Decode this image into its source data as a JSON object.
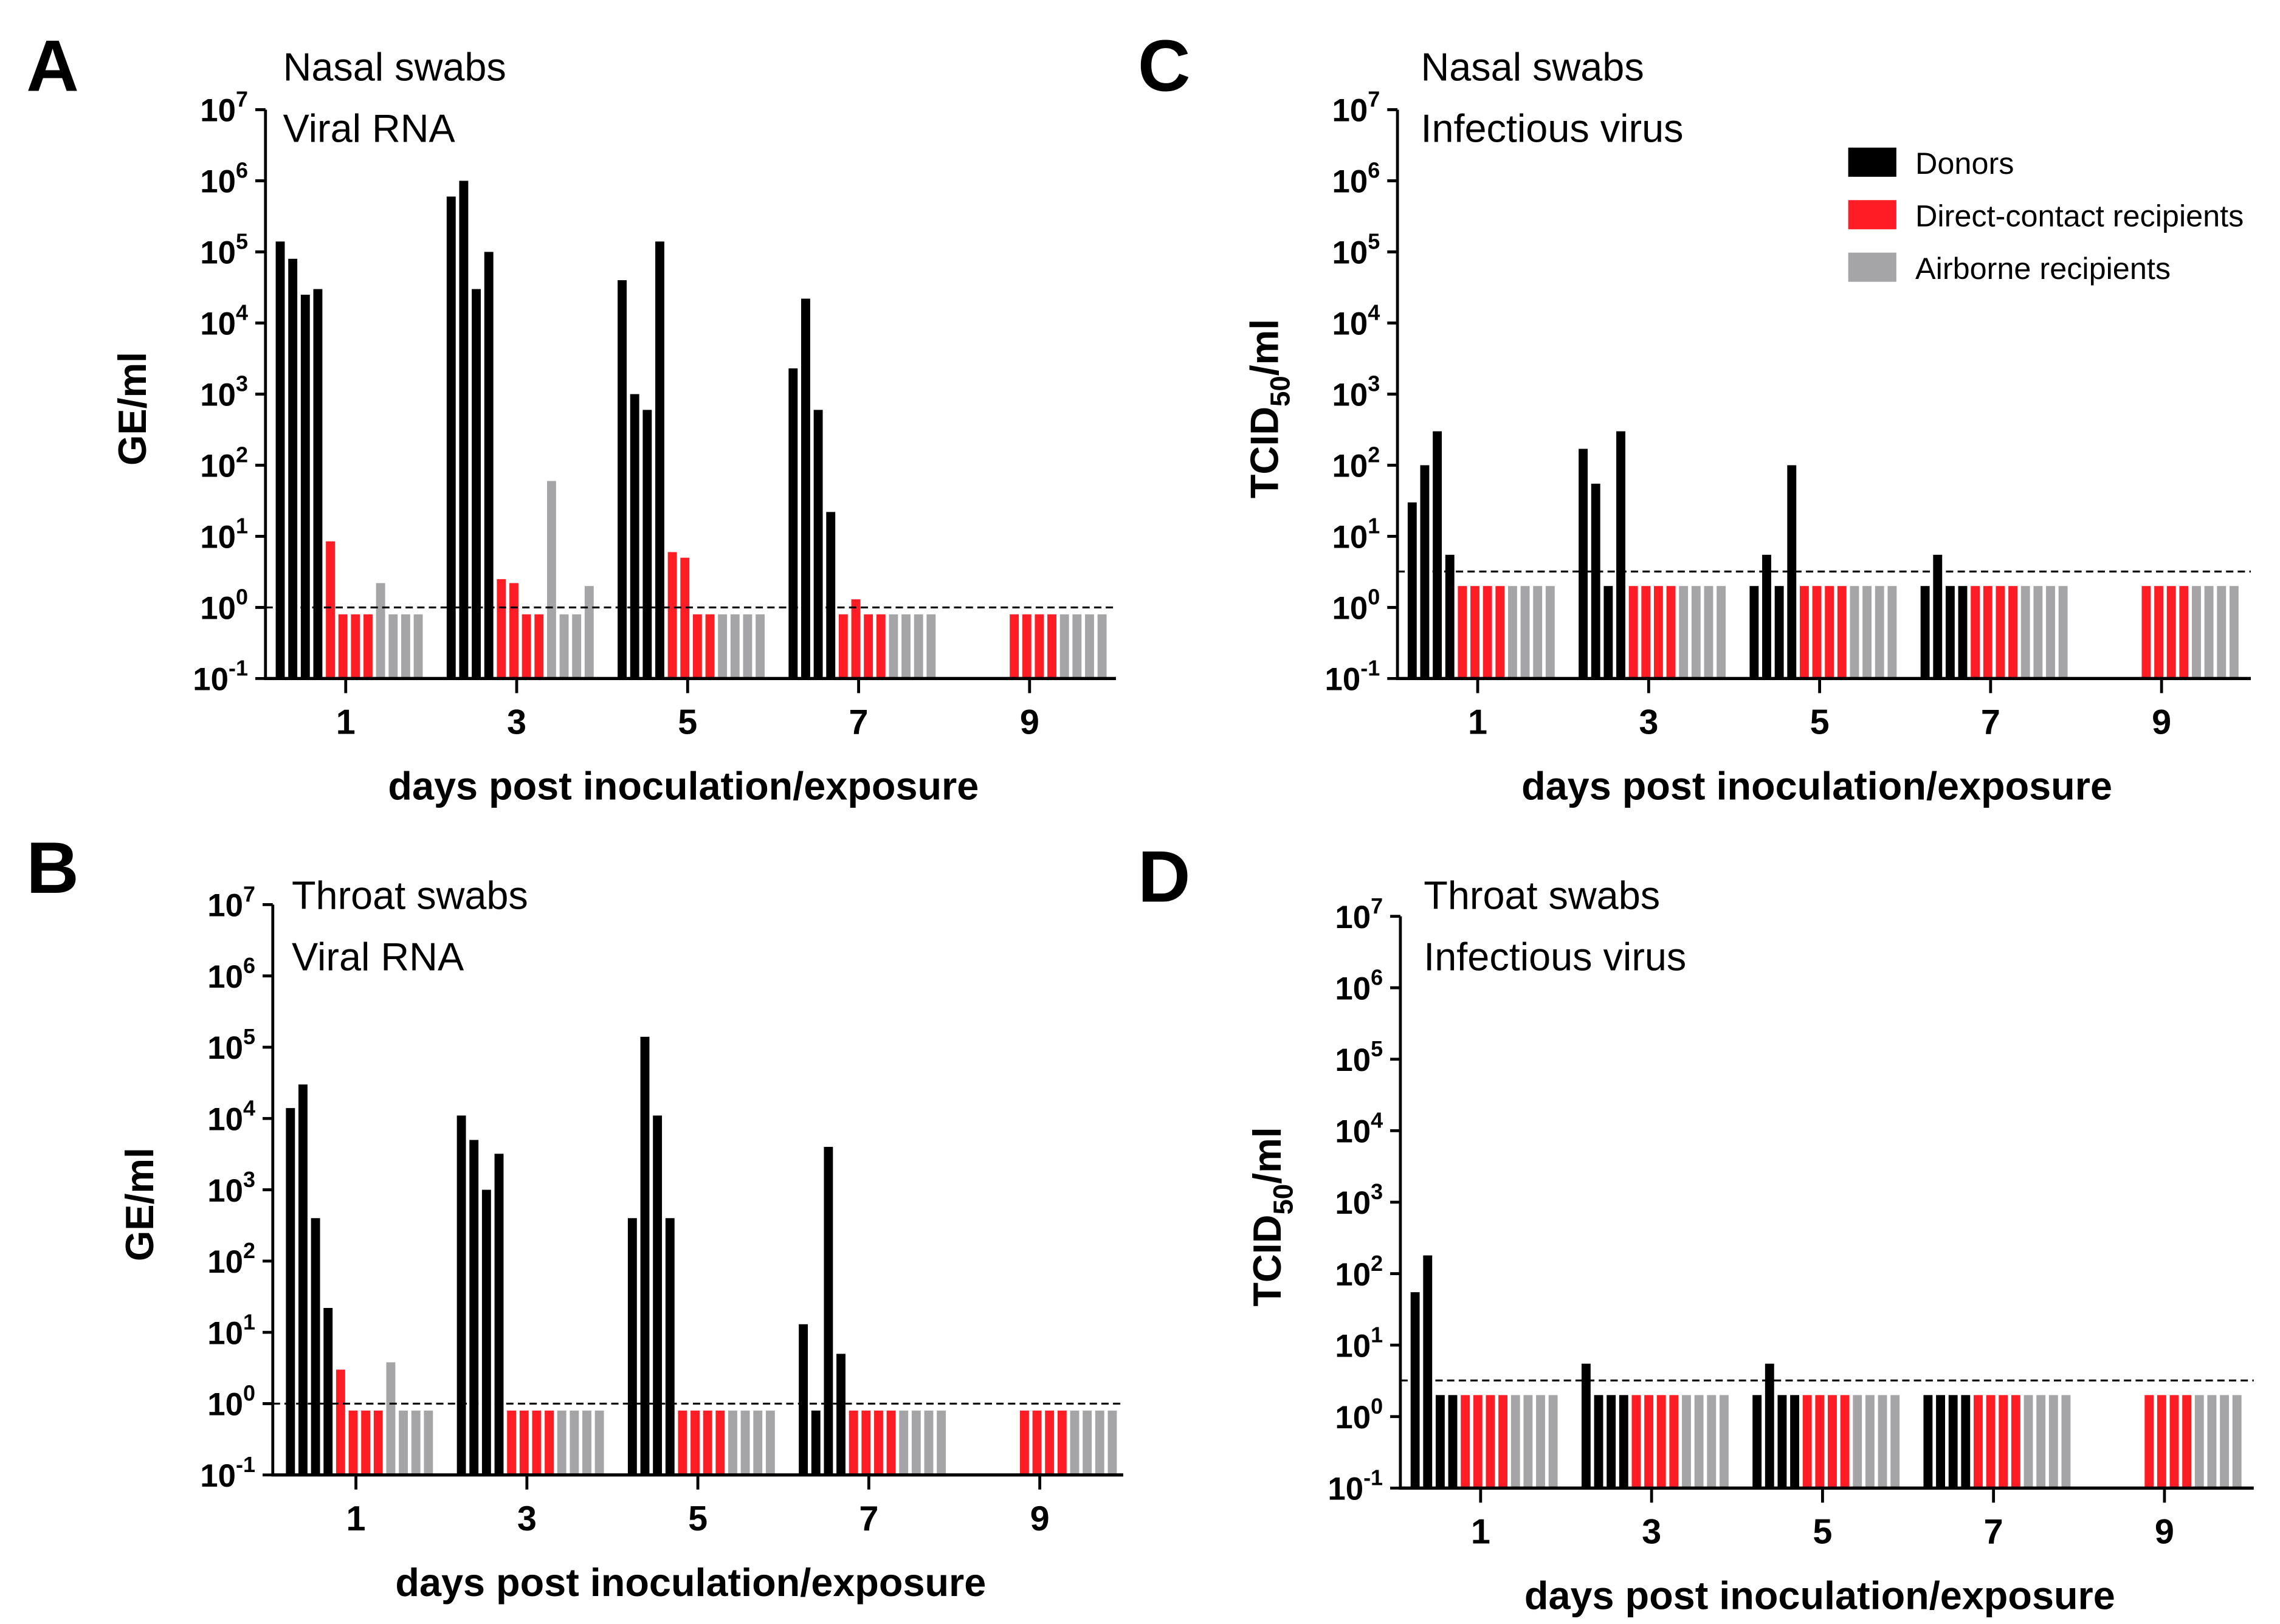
{
  "colors": {
    "donors": "#000000",
    "direct": "#ff1d25",
    "airborne": "#a5a5a7"
  },
  "legend": [
    "Donors",
    "Direct-contact recipients",
    "Airborne recipients"
  ],
  "chart_data": [
    {
      "panel": "A",
      "type": "bar",
      "title": [
        "Nasal swabs",
        "Viral RNA"
      ],
      "ylabel": "GE/ml",
      "ylabel_sub": "",
      "ylabel_suffix": "",
      "xlabel": "days post inoculation/exposure",
      "yscale": "log",
      "ylim": [
        0.1,
        10000000
      ],
      "ytick_exps": [
        "7",
        "6",
        "5",
        "4",
        "3",
        "2",
        "1",
        "0",
        "-1"
      ],
      "categories": [
        "1",
        "3",
        "5",
        "7",
        "9"
      ],
      "detection_limit": 1,
      "series": [
        {
          "name": "Donors",
          "values": [
            [
              140000,
              80000,
              25000,
              30000
            ],
            [
              600000,
              1000000,
              30000,
              100000
            ],
            [
              40000,
              1000,
              600,
              140000
            ],
            [
              2300,
              22000,
              600,
              22
            ],
            null
          ]
        },
        {
          "name": "Direct-contact recipients",
          "values": [
            [
              8.5,
              0.8,
              0.8,
              0.8
            ],
            [
              2.5,
              2.2,
              0.8,
              0.8
            ],
            [
              6,
              5,
              0.8,
              0.8
            ],
            [
              0.8,
              1.3,
              0.8,
              0.8
            ],
            [
              0.8,
              0.8,
              0.8,
              0.8
            ]
          ]
        },
        {
          "name": "Airborne recipients",
          "values": [
            [
              2.2,
              0.8,
              0.8,
              0.8
            ],
            [
              60,
              0.8,
              0.8,
              2
            ],
            [
              0.8,
              0.8,
              0.8,
              0.8
            ],
            [
              0.8,
              0.8,
              0.8,
              0.8
            ],
            [
              0.8,
              0.8,
              0.8,
              0.8
            ]
          ]
        }
      ]
    },
    {
      "panel": "B",
      "type": "bar",
      "title": [
        "Throat swabs",
        "Viral RNA"
      ],
      "ylabel": "GE/ml",
      "ylabel_sub": "",
      "ylabel_suffix": "",
      "xlabel": "days post inoculation/exposure",
      "yscale": "log",
      "ylim": [
        0.1,
        10000000
      ],
      "ytick_exps": [
        "7",
        "6",
        "5",
        "4",
        "3",
        "2",
        "1",
        "0",
        "-1"
      ],
      "categories": [
        "1",
        "3",
        "5",
        "7",
        "9"
      ],
      "detection_limit": 1,
      "series": [
        {
          "name": "Donors",
          "values": [
            [
              14000,
              30000,
              400,
              22
            ],
            [
              11000,
              5000,
              1000,
              3200
            ],
            [
              400,
              140000,
              11000,
              400
            ],
            [
              13,
              0.8,
              4000,
              5
            ],
            null
          ]
        },
        {
          "name": "Direct-contact recipients",
          "values": [
            [
              3,
              0.8,
              0.8,
              0.8
            ],
            [
              0.8,
              0.8,
              0.8,
              0.8
            ],
            [
              0.8,
              0.8,
              0.8,
              0.8
            ],
            [
              0.8,
              0.8,
              0.8,
              0.8
            ],
            [
              0.8,
              0.8,
              0.8,
              0.8
            ]
          ]
        },
        {
          "name": "Airborne recipients",
          "values": [
            [
              3.8,
              0.8,
              0.8,
              0.8
            ],
            [
              0.8,
              0.8,
              0.8,
              0.8
            ],
            [
              0.8,
              0.8,
              0.8,
              0.8
            ],
            [
              0.8,
              0.8,
              0.8,
              0.8
            ],
            [
              0.8,
              0.8,
              0.8,
              0.8
            ]
          ]
        }
      ]
    },
    {
      "panel": "C",
      "type": "bar",
      "title": [
        "Nasal swabs",
        "Infectious virus"
      ],
      "ylabel": "TCID",
      "ylabel_sub": "50",
      "ylabel_suffix": "/ml",
      "xlabel": "days post inoculation/exposure",
      "yscale": "log",
      "ylim": [
        0.1,
        10000000
      ],
      "ytick_exps": [
        "7",
        "6",
        "5",
        "4",
        "3",
        "2",
        "1",
        "0",
        "-1"
      ],
      "categories": [
        "1",
        "3",
        "5",
        "7",
        "9"
      ],
      "detection_limit": 3.2,
      "series": [
        {
          "name": "Donors",
          "values": [
            [
              30,
              100,
              300,
              5.5
            ],
            [
              170,
              55,
              2,
              300
            ],
            [
              2,
              5.5,
              2,
              100
            ],
            [
              2,
              5.5,
              2,
              2
            ],
            null
          ]
        },
        {
          "name": "Direct-contact recipients",
          "values": [
            [
              2,
              2,
              2,
              2
            ],
            [
              2,
              2,
              2,
              2
            ],
            [
              2,
              2,
              2,
              2
            ],
            [
              2,
              2,
              2,
              2
            ],
            [
              2,
              2,
              2,
              2
            ]
          ]
        },
        {
          "name": "Airborne recipients",
          "values": [
            [
              2,
              2,
              2,
              2
            ],
            [
              2,
              2,
              2,
              2
            ],
            [
              2,
              2,
              2,
              2
            ],
            [
              2,
              2,
              2,
              2
            ],
            [
              2,
              2,
              2,
              2
            ]
          ]
        }
      ]
    },
    {
      "panel": "D",
      "type": "bar",
      "title": [
        "Throat swabs",
        "Infectious virus"
      ],
      "ylabel": "TCID",
      "ylabel_sub": "50",
      "ylabel_suffix": "/ml",
      "xlabel": "days post inoculation/exposure",
      "yscale": "log",
      "ylim": [
        0.1,
        10000000
      ],
      "ytick_exps": [
        "7",
        "6",
        "5",
        "4",
        "3",
        "2",
        "1",
        "0",
        "-1"
      ],
      "categories": [
        "1",
        "3",
        "5",
        "7",
        "9"
      ],
      "detection_limit": 3.2,
      "series": [
        {
          "name": "Donors",
          "values": [
            [
              55,
              180,
              2,
              2
            ],
            [
              5.5,
              2,
              2,
              2
            ],
            [
              2,
              5.5,
              2,
              2
            ],
            [
              2,
              2,
              2,
              2
            ],
            null
          ]
        },
        {
          "name": "Direct-contact recipients",
          "values": [
            [
              2,
              2,
              2,
              2
            ],
            [
              2,
              2,
              2,
              2
            ],
            [
              2,
              2,
              2,
              2
            ],
            [
              2,
              2,
              2,
              2
            ],
            [
              2,
              2,
              2,
              2
            ]
          ]
        },
        {
          "name": "Airborne recipients",
          "values": [
            [
              2,
              2,
              2,
              2
            ],
            [
              2,
              2,
              2,
              2
            ],
            [
              2,
              2,
              2,
              2
            ],
            [
              2,
              2,
              2,
              2
            ],
            [
              2,
              2,
              2,
              2
            ]
          ]
        }
      ]
    }
  ]
}
